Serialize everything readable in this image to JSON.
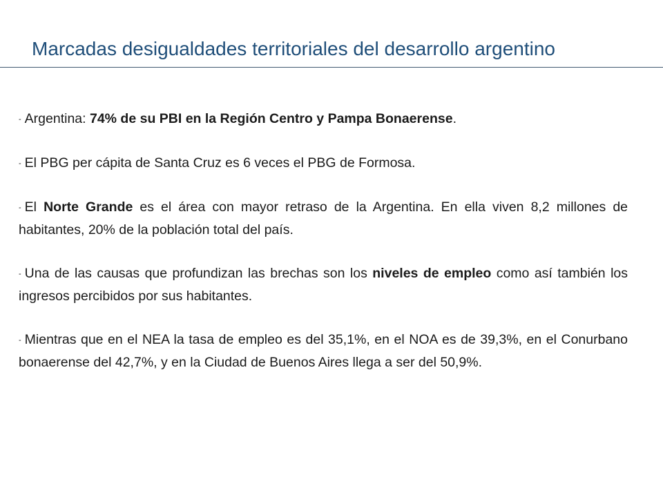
{
  "slide": {
    "title": "Marcadas desigualdades territoriales del desarrollo argentino"
  },
  "bullets": [
    {
      "dash": "-",
      "parts": [
        {
          "text": "Argentina: ",
          "bold": false
        },
        {
          "text": "74% de su PBI en la Región Centro y Pampa Bonaerense",
          "bold": true
        },
        {
          "text": ".",
          "bold": false
        }
      ]
    },
    {
      "dash": "-",
      "parts": [
        {
          "text": "El PBG per cápita de Santa Cruz es 6 veces el PBG de Formosa.",
          "bold": false
        }
      ]
    },
    {
      "dash": "-",
      "parts": [
        {
          "text": "El ",
          "bold": false
        },
        {
          "text": "Norte Grande",
          "bold": true
        },
        {
          "text": " es el área con mayor retraso de la Argentina. En ella viven 8,2 millones de habitantes, 20% de la población total del país.",
          "bold": false
        }
      ]
    },
    {
      "dash": "-",
      "parts": [
        {
          "text": "Una de las causas que profundizan las brechas son los ",
          "bold": false
        },
        {
          "text": "niveles de empleo",
          "bold": true
        },
        {
          "text": " como así también los ingresos percibidos por sus habitantes.",
          "bold": false
        }
      ]
    },
    {
      "dash": "-",
      "parts": [
        {
          "text": "Mientras que en el NEA la tasa de empleo es del 35,1%, en el NOA es de 39,3%, en el Conurbano bonaerense del 42,7%, y en la Ciudad de Buenos Aires llega a ser del 50,9%.",
          "bold": false
        }
      ]
    }
  ],
  "colors": {
    "title": "#1f4e79",
    "rule": "#3f5870",
    "body_text": "#1a1a1a"
  }
}
